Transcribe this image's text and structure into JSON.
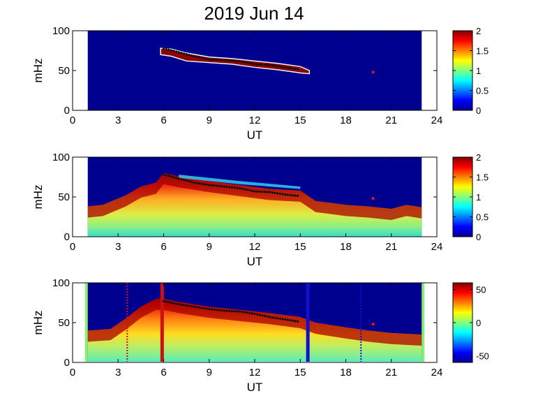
{
  "figure": {
    "title": "2019 Jun 14"
  },
  "chart_data": [
    {
      "type": "heatmap",
      "xlabel": "UT",
      "ylabel": "mHz",
      "xlim": [
        0,
        24
      ],
      "ylim": [
        0,
        100
      ],
      "xticks": [
        "0",
        "3",
        "6",
        "9",
        "12",
        "15",
        "18",
        "21",
        "24"
      ],
      "yticks": [
        "0",
        "50",
        "100"
      ],
      "data_range_ut": [
        1.0,
        23.0
      ],
      "colorbar": {
        "min": 0,
        "max": 2,
        "ticks": [
          "0",
          "0.5",
          "1",
          "1.5",
          "2"
        ]
      },
      "band": {
        "x": [
          5.8,
          6.5,
          7.5,
          9.0,
          10.5,
          12.0,
          13.5,
          15.0,
          15.6
        ],
        "upper": [
          78,
          77,
          72,
          67,
          65,
          62,
          59,
          55,
          50
        ],
        "lower": [
          70,
          68,
          62,
          60,
          58,
          54,
          51,
          47,
          46
        ]
      },
      "ridge_points": {
        "x": [
          6.0,
          7.0,
          8.0,
          9.0,
          10.0,
          11.0,
          12.0,
          13.0,
          14.0,
          15.0
        ],
        "y": [
          78,
          73,
          68,
          64,
          63,
          62,
          58,
          57,
          54,
          51
        ]
      },
      "marker": {
        "x": 19.8,
        "y": 48
      },
      "grid": false
    },
    {
      "type": "heatmap",
      "xlabel": "UT",
      "ylabel": "mHz",
      "xlim": [
        0,
        24
      ],
      "ylim": [
        0,
        100
      ],
      "xticks": [
        "0",
        "3",
        "6",
        "9",
        "12",
        "15",
        "18",
        "21",
        "24"
      ],
      "yticks": [
        "0",
        "50",
        "100"
      ],
      "data_range_ut": [
        1.0,
        23.0
      ],
      "colorbar": {
        "min": 0,
        "max": 2,
        "ticks": [
          "0",
          "0.5",
          "1",
          "1.5",
          "2"
        ]
      },
      "envelope": {
        "x": [
          1.0,
          2.0,
          3.5,
          4.5,
          5.5,
          6.0,
          7.0,
          9.0,
          11.0,
          13.0,
          15.0,
          16.0,
          18.0,
          19.5,
          21.0,
          22.0,
          23.0
        ],
        "top": [
          38,
          40,
          52,
          63,
          68,
          80,
          76,
          70,
          65,
          60,
          58,
          45,
          40,
          38,
          35,
          40,
          37
        ]
      },
      "ridge_points": {
        "x": [
          6.0,
          7.0,
          8.0,
          9.0,
          10.0,
          11.0,
          12.0,
          13.0,
          14.0,
          15.0
        ],
        "y": [
          78,
          73,
          68,
          65,
          63,
          61,
          57,
          56,
          53,
          51
        ]
      },
      "marker": {
        "x": 19.8,
        "y": 48
      },
      "grid": false
    },
    {
      "type": "heatmap",
      "xlabel": "UT",
      "ylabel": "mHz",
      "xlim": [
        0,
        24
      ],
      "ylim": [
        0,
        100
      ],
      "xticks": [
        "0",
        "3",
        "6",
        "9",
        "12",
        "15",
        "18",
        "21",
        "24"
      ],
      "yticks": [
        "0",
        "50",
        "100"
      ],
      "data_range_ut": [
        1.0,
        23.0
      ],
      "colorbar": {
        "min": -60,
        "max": 60,
        "ticks": [
          "50",
          "0",
          "-50"
        ]
      },
      "envelope": {
        "x": [
          1.0,
          2.5,
          3.5,
          4.5,
          5.5,
          6.0,
          7.0,
          9.0,
          11.0,
          13.0,
          15.0,
          16.0,
          18.0,
          19.5,
          21.0,
          23.0
        ],
        "top": [
          40,
          42,
          55,
          70,
          80,
          80,
          76,
          70,
          66,
          62,
          57,
          50,
          44,
          40,
          37,
          35
        ]
      },
      "ridge_points": {
        "x": [
          6.0,
          7.0,
          8.0,
          9.0,
          10.0,
          11.0,
          12.0,
          13.0,
          14.0,
          15.0
        ],
        "y": [
          77,
          73,
          70,
          67,
          65,
          64,
          61,
          57,
          54,
          51
        ]
      },
      "vertical_lines": [
        {
          "x": 5.9,
          "color": "#cc1111",
          "style": "solid"
        },
        {
          "x": 15.5,
          "color": "#1111cc",
          "style": "solid"
        },
        {
          "x": 3.6,
          "color": "#cc1111",
          "style": "dotted"
        },
        {
          "x": 19.0,
          "color": "#1111cc",
          "style": "dotted"
        }
      ],
      "marker": {
        "x": 19.8,
        "y": 48
      },
      "grid": false
    }
  ]
}
